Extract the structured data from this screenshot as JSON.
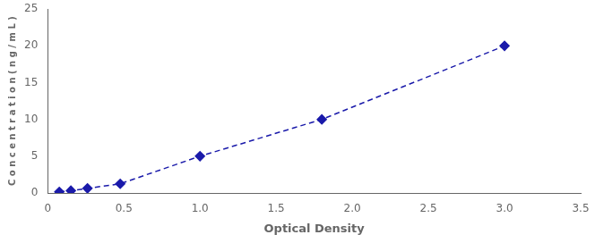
{
  "chart_data": {
    "type": "line",
    "x": [
      0.076,
      0.152,
      0.261,
      0.476,
      1.0,
      1.8,
      3.0
    ],
    "values": [
      0.156,
      0.312,
      0.625,
      1.25,
      5.0,
      10.0,
      20.0
    ],
    "color": "#1a1aaa",
    "marker": "diamond",
    "line_style": "dashed",
    "x_label": "Optical Density",
    "y_label": "C o n c e n t r a t i o n ( n g / m L )",
    "xlim": [
      0,
      3.5
    ],
    "ylim": [
      0,
      25
    ],
    "xticks": [
      0,
      0.5,
      {
        "value": 1,
        "label": "1.0"
      },
      1.5,
      {
        "value": 2,
        "label": "2.0"
      },
      2.5,
      {
        "value": 3,
        "label": "3.0"
      },
      3.5
    ],
    "yticks": [
      0,
      5,
      10,
      15,
      20,
      25
    ],
    "grid": false
  }
}
